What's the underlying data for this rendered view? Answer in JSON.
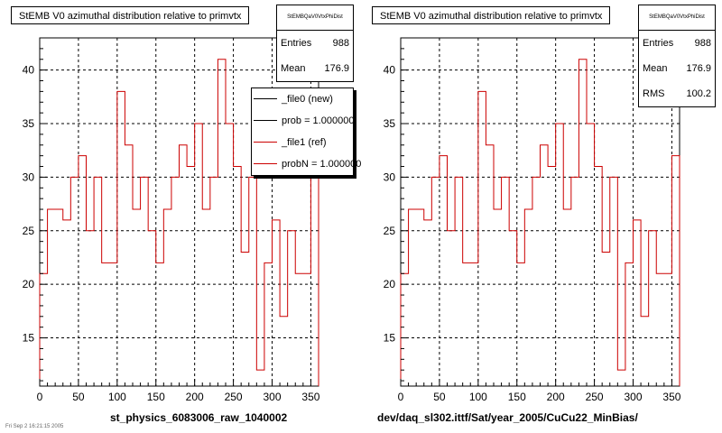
{
  "chart_data": [
    {
      "type": "histogram",
      "title": "StEMB V0 azimuthal distribution relative to primvtx",
      "xlabel": "st_physics_6083006_raw_1040002",
      "xlim": [
        0,
        360
      ],
      "ylim": [
        10.5,
        43
      ],
      "xticks": [
        0,
        50,
        100,
        150,
        200,
        250,
        300,
        350
      ],
      "yticks": [
        15,
        20,
        25,
        30,
        35,
        40
      ],
      "grid": true,
      "bin_width": 10,
      "series": [
        {
          "color": "#cc0000",
          "values": [
            21,
            27,
            27,
            26,
            30,
            32,
            25,
            30,
            22,
            22,
            38,
            33,
            27,
            30,
            25,
            22,
            27,
            30,
            33,
            31,
            35,
            27,
            30,
            41,
            35,
            31,
            23,
            30,
            12,
            22,
            26,
            17,
            25,
            21,
            21,
            32
          ]
        }
      ],
      "stats": {
        "name": "StEMBQaV0VtxPhiDist",
        "entries_label": "Entries",
        "entries": "988",
        "mean_label": "Mean",
        "mean": "176.9"
      },
      "legend": {
        "position": "top-right",
        "entries": [
          {
            "label": "_file0 (new)",
            "color": "#000000"
          },
          {
            "label": "prob = 1.000000",
            "color": "#000000"
          },
          {
            "label": "_file1 (ref)",
            "color": "#cc0000"
          },
          {
            "label": "probN = 1.000000",
            "color": "#cc0000"
          }
        ]
      }
    },
    {
      "type": "histogram",
      "title": "StEMB V0 azimuthal distribution relative to primvtx",
      "xlabel": "dev/daq_sl302.ittf/Sat/year_2005/CuCu22_MinBias/",
      "xlim": [
        0,
        360
      ],
      "ylim": [
        10.5,
        43
      ],
      "xticks": [
        0,
        50,
        100,
        150,
        200,
        250,
        300,
        350
      ],
      "yticks": [
        15,
        20,
        25,
        30,
        35,
        40
      ],
      "grid": true,
      "bin_width": 10,
      "series": [
        {
          "color": "#cc0000",
          "values": [
            21,
            27,
            27,
            26,
            30,
            32,
            25,
            30,
            22,
            22,
            38,
            33,
            27,
            30,
            25,
            22,
            27,
            30,
            33,
            31,
            35,
            27,
            30,
            41,
            35,
            31,
            23,
            30,
            12,
            22,
            26,
            17,
            25,
            21,
            21,
            32
          ]
        }
      ],
      "stats": {
        "name": "StEMBQaV0VtxPhiDist",
        "entries_label": "Entries",
        "entries": "988",
        "mean_label": "Mean",
        "mean": "176.9",
        "rms_label": "RMS",
        "rms": "100.2"
      }
    }
  ],
  "footnote": "Fri Sep  2 16:21:15 2005"
}
